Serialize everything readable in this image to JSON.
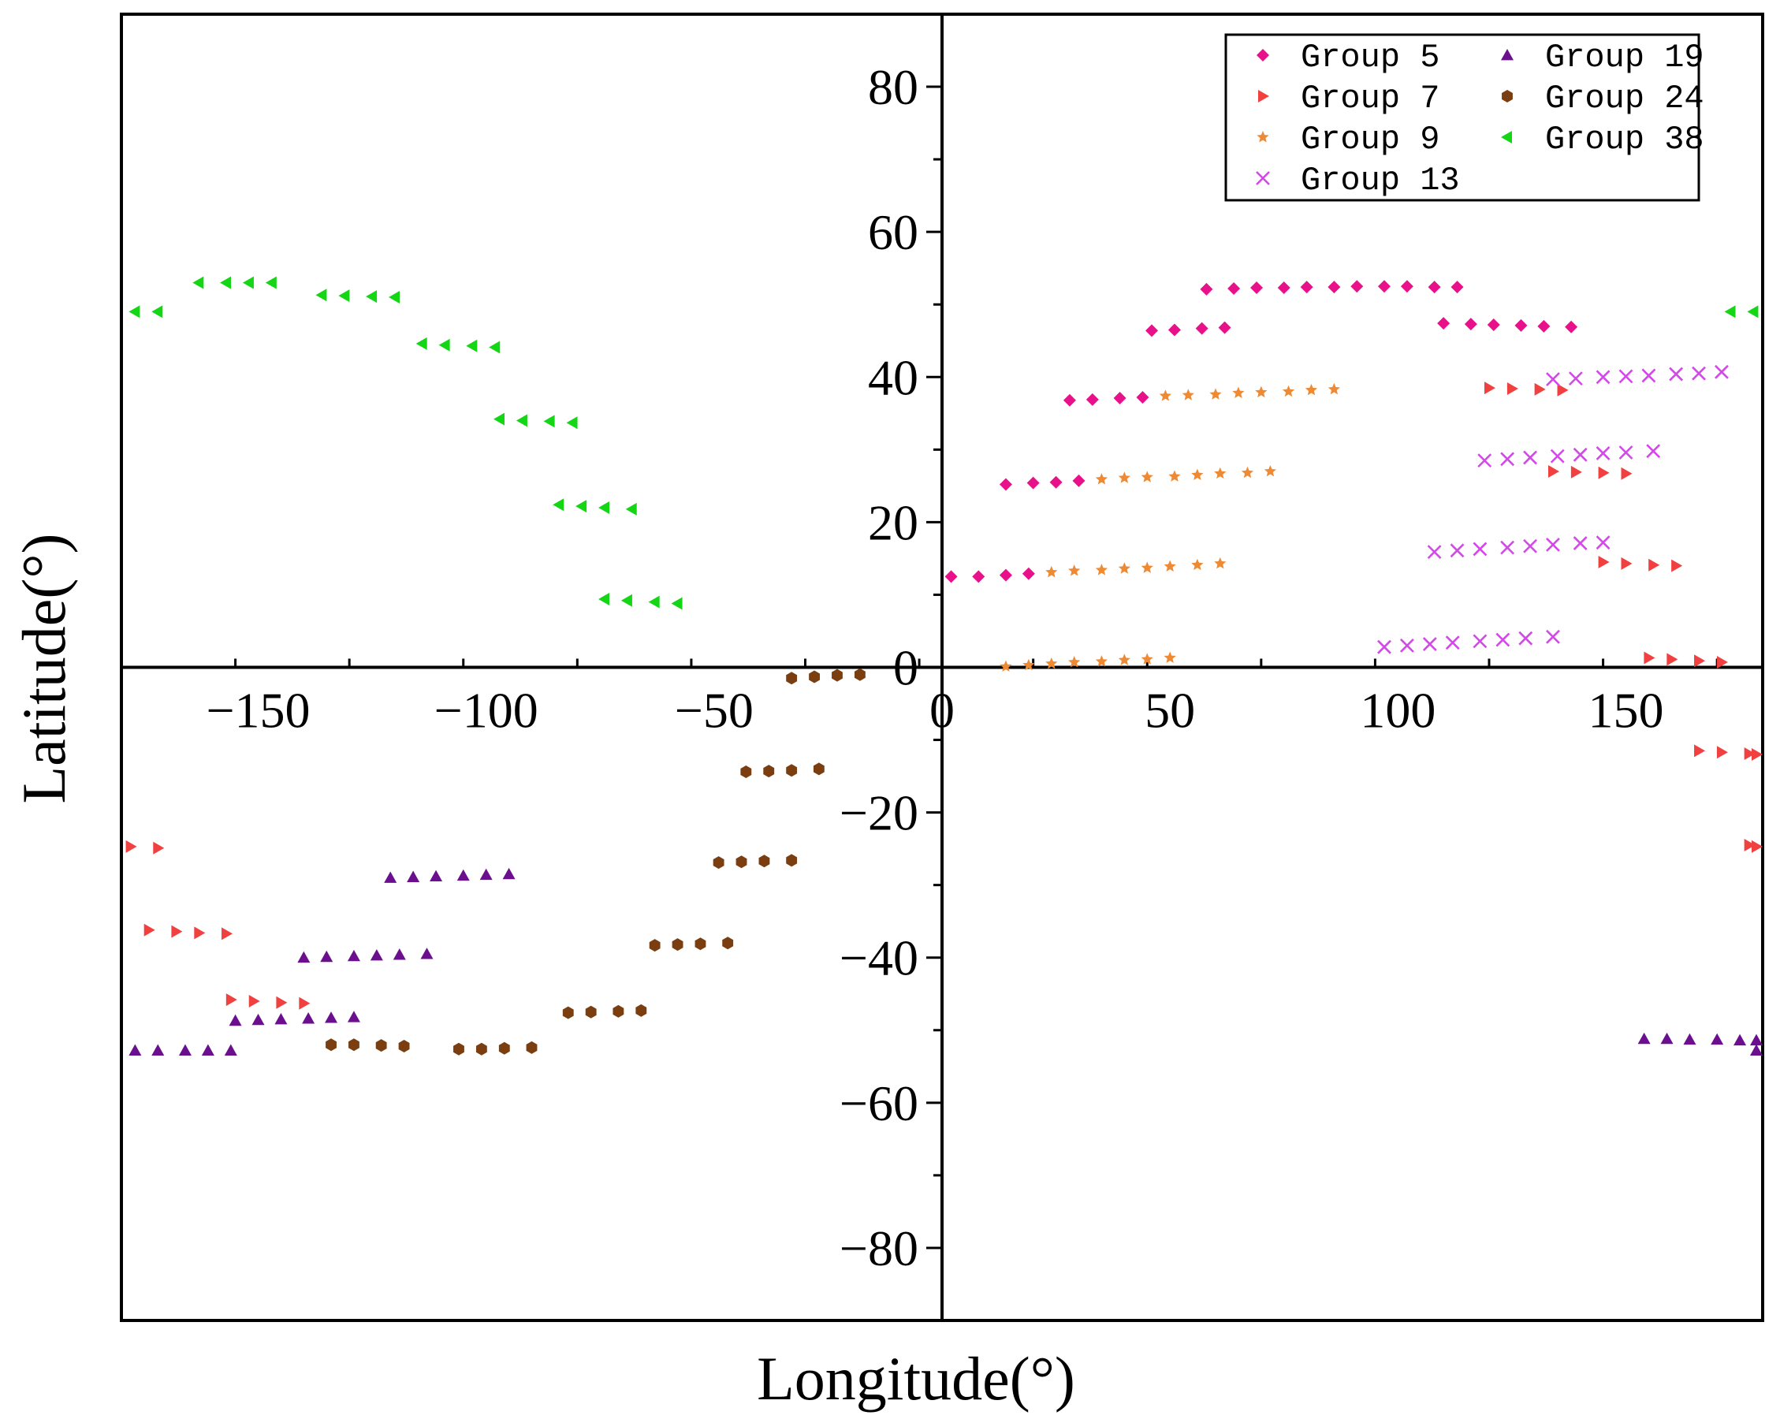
{
  "chart_data": {
    "type": "scatter",
    "title": "",
    "xlabel": "Longitude(°)",
    "ylabel": "Latitude(°)",
    "xlim": [
      -180,
      180
    ],
    "ylim": [
      -90,
      90
    ],
    "xticks": [
      -150,
      -100,
      -50,
      0,
      50,
      100,
      150
    ],
    "yticks": [
      -80,
      -60,
      -40,
      -20,
      0,
      20,
      40,
      60,
      80
    ],
    "xtick_labels": [
      "−150",
      "−100",
      "−50",
      "0",
      "50",
      "100",
      "150"
    ],
    "ytick_labels": [
      "−80",
      "−60",
      "−40",
      "−20",
      "0",
      "20",
      "40",
      "60",
      "80"
    ],
    "legend_position": "top-right",
    "series": [
      {
        "name": "Group 5",
        "marker": "diamond",
        "color": "#e8118a",
        "points": [
          [
            2,
            12.5
          ],
          [
            8,
            12.5
          ],
          [
            14,
            12.7
          ],
          [
            19,
            12.9
          ],
          [
            14,
            25.2
          ],
          [
            20,
            25.4
          ],
          [
            25,
            25.5
          ],
          [
            30,
            25.7
          ],
          [
            28,
            36.8
          ],
          [
            33,
            36.9
          ],
          [
            39,
            37.1
          ],
          [
            44,
            37.2
          ],
          [
            46,
            46.4
          ],
          [
            51,
            46.5
          ],
          [
            57,
            46.7
          ],
          [
            62,
            46.8
          ],
          [
            58,
            52.1
          ],
          [
            64,
            52.2
          ],
          [
            69,
            52.3
          ],
          [
            75,
            52.3
          ],
          [
            80,
            52.4
          ],
          [
            86,
            52.4
          ],
          [
            91,
            52.5
          ],
          [
            97,
            52.5
          ],
          [
            102,
            52.5
          ],
          [
            108,
            52.4
          ],
          [
            113,
            52.4
          ],
          [
            110,
            47.4
          ],
          [
            116,
            47.3
          ],
          [
            121,
            47.2
          ],
          [
            127,
            47.1
          ],
          [
            132,
            47.0
          ],
          [
            138,
            46.9
          ]
        ]
      },
      {
        "name": "Group 7",
        "marker": "triangle-right",
        "color": "#f04040",
        "points": [
          [
            120,
            38.5
          ],
          [
            125,
            38.4
          ],
          [
            131,
            38.3
          ],
          [
            136,
            38.2
          ],
          [
            134,
            27.0
          ],
          [
            139,
            26.9
          ],
          [
            145,
            26.8
          ],
          [
            150,
            26.7
          ],
          [
            145,
            14.5
          ],
          [
            150,
            14.3
          ],
          [
            156,
            14.1
          ],
          [
            161,
            14.0
          ],
          [
            155,
            1.3
          ],
          [
            160,
            1.1
          ],
          [
            166,
            0.9
          ],
          [
            171,
            0.7
          ],
          [
            166,
            -11.5
          ],
          [
            171,
            -11.7
          ],
          [
            177,
            -11.9
          ],
          [
            182,
            -12.0
          ],
          [
            177,
            -24.5
          ],
          [
            182,
            -24.7
          ],
          [
            -178,
            -24.7
          ],
          [
            -172,
            -24.9
          ],
          [
            -174,
            -36.2
          ],
          [
            -168,
            -36.4
          ],
          [
            -163,
            -36.6
          ],
          [
            -157,
            -36.7
          ],
          [
            -156,
            -45.8
          ],
          [
            -151,
            -46.0
          ],
          [
            -145,
            -46.2
          ],
          [
            -140,
            -46.3
          ]
        ]
      },
      {
        "name": "Group 9",
        "marker": "star",
        "color": "#ee8a33",
        "points": [
          [
            14,
            0.1
          ],
          [
            19,
            0.3
          ],
          [
            24,
            0.5
          ],
          [
            29,
            0.7
          ],
          [
            35,
            0.8
          ],
          [
            40,
            1.0
          ],
          [
            45,
            1.1
          ],
          [
            50,
            1.3
          ],
          [
            24,
            13.1
          ],
          [
            29,
            13.3
          ],
          [
            35,
            13.4
          ],
          [
            40,
            13.6
          ],
          [
            45,
            13.7
          ],
          [
            50,
            13.9
          ],
          [
            56,
            14.1
          ],
          [
            61,
            14.3
          ],
          [
            35,
            25.9
          ],
          [
            40,
            26.1
          ],
          [
            45,
            26.2
          ],
          [
            51,
            26.3
          ],
          [
            56,
            26.5
          ],
          [
            61,
            26.7
          ],
          [
            67,
            26.8
          ],
          [
            72,
            27.0
          ],
          [
            49,
            37.4
          ],
          [
            54,
            37.5
          ],
          [
            60,
            37.6
          ],
          [
            65,
            37.8
          ],
          [
            70,
            37.9
          ],
          [
            76,
            38.0
          ],
          [
            81,
            38.2
          ],
          [
            86,
            38.3
          ]
        ]
      },
      {
        "name": "Group 13",
        "marker": "cross",
        "color": "#d348e8",
        "points": [
          [
            97,
            2.8
          ],
          [
            102,
            3.0
          ],
          [
            107,
            3.2
          ],
          [
            112,
            3.4
          ],
          [
            118,
            3.6
          ],
          [
            123,
            3.8
          ],
          [
            128,
            4.0
          ],
          [
            134,
            4.2
          ],
          [
            108,
            15.9
          ],
          [
            113,
            16.1
          ],
          [
            118,
            16.3
          ],
          [
            124,
            16.5
          ],
          [
            129,
            16.7
          ],
          [
            134,
            16.9
          ],
          [
            140,
            17.1
          ],
          [
            145,
            17.2
          ],
          [
            119,
            28.5
          ],
          [
            124,
            28.7
          ],
          [
            129,
            28.9
          ],
          [
            135,
            29.1
          ],
          [
            140,
            29.3
          ],
          [
            145,
            29.5
          ],
          [
            150,
            29.6
          ],
          [
            156,
            29.8
          ],
          [
            134,
            39.7
          ],
          [
            139,
            39.8
          ],
          [
            145,
            40.0
          ],
          [
            150,
            40.1
          ],
          [
            155,
            40.2
          ],
          [
            161,
            40.4
          ],
          [
            166,
            40.5
          ],
          [
            171,
            40.7
          ]
        ]
      },
      {
        "name": "Group 19",
        "marker": "triangle-up",
        "color": "#6b0f8f",
        "points": [
          [
            -177,
            -52.8
          ],
          [
            -172,
            -52.8
          ],
          [
            -166,
            -52.8
          ],
          [
            -161,
            -52.8
          ],
          [
            -156,
            -52.8
          ],
          [
            -155,
            -48.7
          ],
          [
            -150,
            -48.6
          ],
          [
            -145,
            -48.5
          ],
          [
            -139,
            -48.4
          ],
          [
            -134,
            -48.3
          ],
          [
            -129,
            -48.2
          ],
          [
            -140,
            -40.0
          ],
          [
            -135,
            -39.9
          ],
          [
            -129,
            -39.8
          ],
          [
            -124,
            -39.7
          ],
          [
            -119,
            -39.6
          ],
          [
            -113,
            -39.5
          ],
          [
            -121,
            -29.0
          ],
          [
            -116,
            -28.9
          ],
          [
            -111,
            -28.8
          ],
          [
            -105,
            -28.7
          ],
          [
            -100,
            -28.6
          ],
          [
            -95,
            -28.5
          ],
          [
            154,
            -51.2
          ],
          [
            159,
            -51.2
          ],
          [
            164,
            -51.3
          ],
          [
            170,
            -51.3
          ],
          [
            175,
            -51.4
          ],
          [
            180,
            -51.4
          ],
          [
            180,
            -52.8
          ]
        ]
      },
      {
        "name": "Group 24",
        "marker": "hexagon",
        "color": "#7a3e10",
        "points": [
          [
            -134,
            -52.0
          ],
          [
            -129,
            -52.0
          ],
          [
            -123,
            -52.1
          ],
          [
            -118,
            -52.2
          ],
          [
            -106,
            -52.6
          ],
          [
            -101,
            -52.6
          ],
          [
            -96,
            -52.5
          ],
          [
            -90,
            -52.4
          ],
          [
            -82,
            -47.6
          ],
          [
            -77,
            -47.5
          ],
          [
            -71,
            -47.4
          ],
          [
            -66,
            -47.3
          ],
          [
            -63,
            -38.3
          ],
          [
            -58,
            -38.2
          ],
          [
            -53,
            -38.1
          ],
          [
            -47,
            -38.0
          ],
          [
            -49,
            -26.9
          ],
          [
            -44,
            -26.8
          ],
          [
            -39,
            -26.7
          ],
          [
            -33,
            -26.6
          ],
          [
            -43,
            -14.4
          ],
          [
            -38,
            -14.3
          ],
          [
            -33,
            -14.2
          ],
          [
            -27,
            -14.0
          ],
          [
            -33,
            -1.5
          ],
          [
            -28,
            -1.3
          ],
          [
            -23,
            -1.1
          ],
          [
            -18,
            -1.0
          ]
        ]
      },
      {
        "name": "Group 38",
        "marker": "triangle-left",
        "color": "#14d614",
        "points": [
          [
            -177,
            49.0
          ],
          [
            -172,
            49.0
          ],
          [
            173,
            49.0
          ],
          [
            178,
            49.0
          ],
          [
            -163,
            53.0
          ],
          [
            -157,
            53.0
          ],
          [
            -152,
            53.0
          ],
          [
            -147,
            53.0
          ],
          [
            -136,
            51.3
          ],
          [
            -131,
            51.2
          ],
          [
            -125,
            51.1
          ],
          [
            -120,
            51.0
          ],
          [
            -114,
            44.6
          ],
          [
            -109,
            44.4
          ],
          [
            -103,
            44.3
          ],
          [
            -98,
            44.1
          ],
          [
            -97,
            34.2
          ],
          [
            -92,
            34.0
          ],
          [
            -86,
            33.9
          ],
          [
            -81,
            33.7
          ],
          [
            -84,
            22.4
          ],
          [
            -79,
            22.2
          ],
          [
            -74,
            22.0
          ],
          [
            -68,
            21.8
          ],
          [
            -74,
            9.4
          ],
          [
            -69,
            9.2
          ],
          [
            -63,
            9.0
          ],
          [
            -58,
            8.8
          ]
        ]
      }
    ]
  }
}
